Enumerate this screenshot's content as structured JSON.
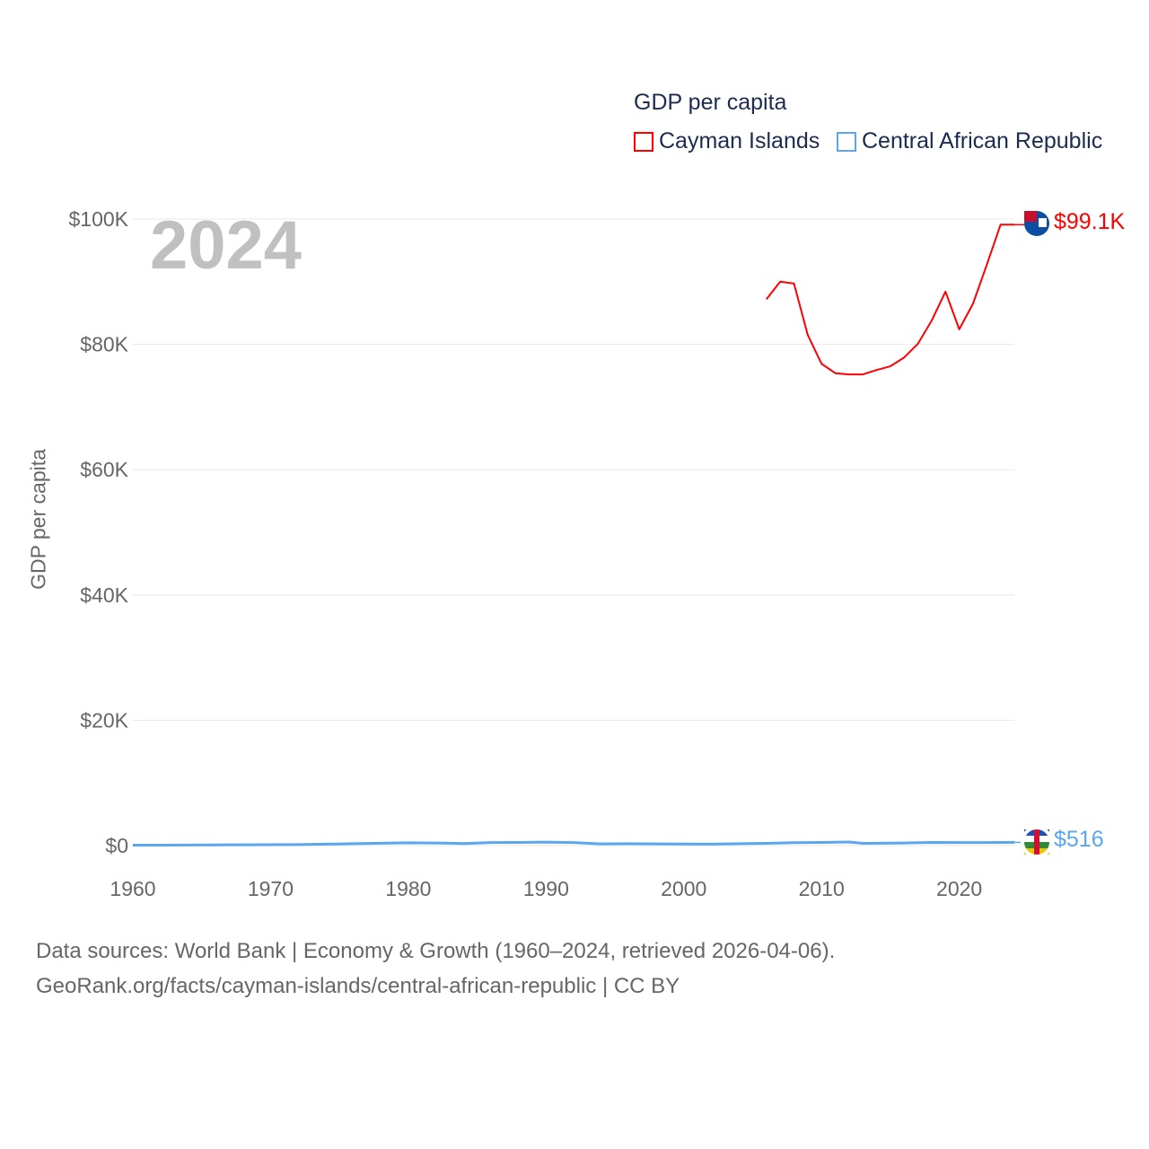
{
  "chart_data": {
    "type": "line",
    "title": "GDP per capita",
    "ylabel": "GDP per capita",
    "xlim": [
      1960,
      2024
    ],
    "ylim": [
      0,
      100000
    ],
    "y_ticks": [
      {
        "v": 0,
        "label": "$0"
      },
      {
        "v": 20000,
        "label": "$20K"
      },
      {
        "v": 40000,
        "label": "$40K"
      },
      {
        "v": 60000,
        "label": "$60K"
      },
      {
        "v": 80000,
        "label": "$80K"
      },
      {
        "v": 100000,
        "label": "$100K"
      }
    ],
    "x_ticks": [
      1960,
      1970,
      1980,
      1990,
      2000,
      2010,
      2020
    ],
    "grid": true,
    "legend_placement": "top-right",
    "year_label": "2024",
    "series": [
      {
        "name": "Cayman Islands",
        "color": "#ff0000",
        "end_label": "$99.1K",
        "x": [
          2006,
          2007,
          2008,
          2009,
          2010,
          2011,
          2012,
          2013,
          2014,
          2015,
          2016,
          2017,
          2018,
          2019,
          2020,
          2021,
          2022,
          2023,
          2024
        ],
        "y": [
          87200,
          90000,
          89700,
          81500,
          76900,
          75400,
          75200,
          75200,
          75900,
          76500,
          77900,
          80100,
          83800,
          88400,
          82400,
          86500,
          92700,
          99100,
          99100
        ]
      },
      {
        "name": "Central African Republic",
        "color": "#5aa6ef",
        "end_label": "$516",
        "x": [
          1960,
          1962,
          1964,
          1966,
          1968,
          1970,
          1972,
          1974,
          1976,
          1978,
          1980,
          1982,
          1984,
          1986,
          1988,
          1990,
          1992,
          1994,
          1996,
          1998,
          2000,
          2002,
          2004,
          2006,
          2008,
          2010,
          2012,
          2013,
          2014,
          2016,
          2018,
          2020,
          2022,
          2024
        ],
        "y": [
          70,
          75,
          85,
          110,
          130,
          150,
          170,
          230,
          300,
          370,
          450,
          420,
          330,
          490,
          500,
          560,
          480,
          260,
          300,
          270,
          250,
          240,
          300,
          360,
          460,
          500,
          580,
          360,
          370,
          420,
          510,
          480,
          480,
          516
        ]
      }
    ]
  },
  "footer": {
    "line1": "Data sources: World Bank | Economy & Growth (1960–2024, retrieved 2026-04-06).",
    "line2": "GeoRank.org/facts/cayman-islands/central-african-republic | CC BY"
  }
}
